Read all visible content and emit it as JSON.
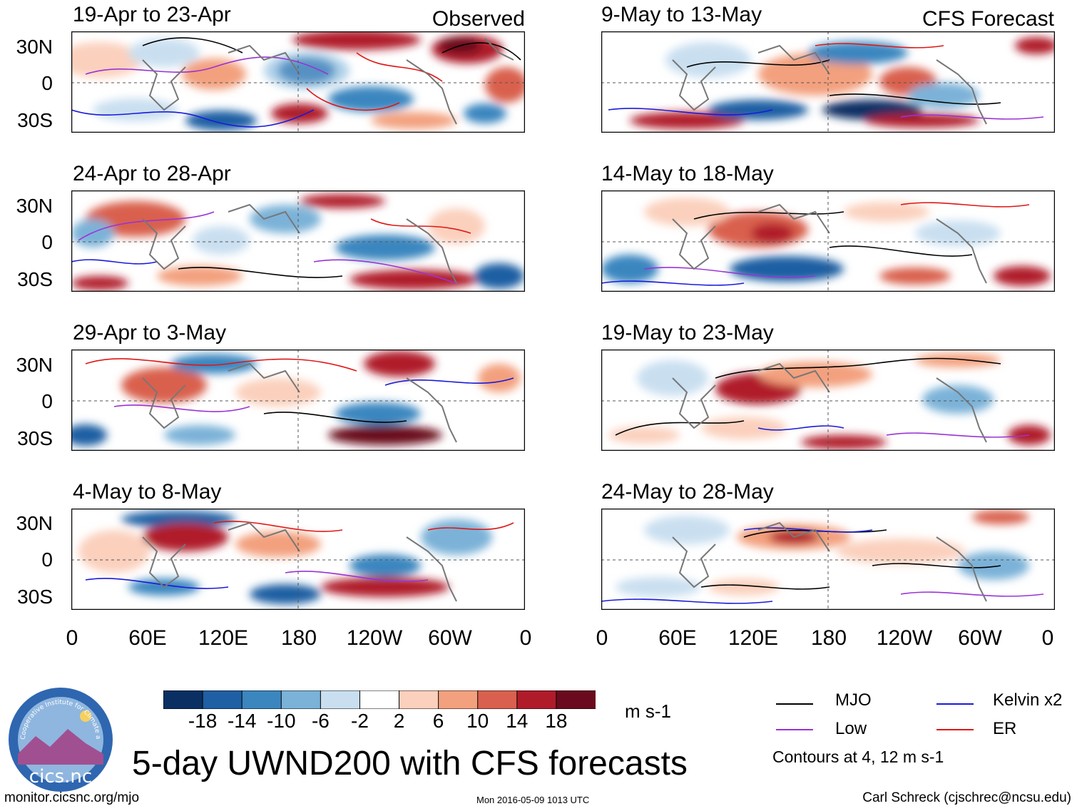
{
  "figure_title": "5-day UWND200 with CFS forecasts",
  "panels_observed": [
    {
      "title": "19-Apr to 23-Apr",
      "tag": "Observed"
    },
    {
      "title": "24-Apr to 28-Apr",
      "tag": ""
    },
    {
      "title": "29-Apr to 3-May",
      "tag": ""
    },
    {
      "title": "4-May to 8-May",
      "tag": ""
    }
  ],
  "panels_forecast": [
    {
      "title": "9-May to 13-May",
      "tag": "CFS Forecast"
    },
    {
      "title": "14-May to 18-May",
      "tag": ""
    },
    {
      "title": "19-May to 23-May",
      "tag": ""
    },
    {
      "title": "24-May to 28-May",
      "tag": ""
    }
  ],
  "lat_labels": [
    "30N",
    "0",
    "30S"
  ],
  "lon_labels": [
    "0",
    "60E",
    "120E",
    "180",
    "120W",
    "60W",
    "0"
  ],
  "colorbar": {
    "labels": [
      "-18",
      "-14",
      "-10",
      "-6",
      "-2",
      "2",
      "6",
      "10",
      "14",
      "18"
    ],
    "units": "m s-1",
    "colors": [
      "#0a2f63",
      "#1f5fa3",
      "#3b86bf",
      "#7bb2d8",
      "#c9dff0",
      "#ffffff",
      "#fbd0bd",
      "#f3a07e",
      "#d9604e",
      "#b01b2a",
      "#6b0a1e"
    ]
  },
  "legend": {
    "items": [
      {
        "label": "MJO",
        "color": "#000000"
      },
      {
        "label": "Kelvin x2",
        "color": "#1a1adb"
      },
      {
        "label": "Low",
        "color": "#9a33d6"
      },
      {
        "label": "ER",
        "color": "#e01616"
      }
    ],
    "contour_note": "Contours at 4, 12 m s-1"
  },
  "logo": {
    "text": "cics.nc",
    "arc_text": "Cooperative Institute for Climate and Satellites"
  },
  "footer": {
    "left": "monitor.cicsnc.org/mjo",
    "center": "Mon 2016-05-09 1013 UTC",
    "right": "Carl Schreck (cjschrec@ncsu.edu)"
  }
}
